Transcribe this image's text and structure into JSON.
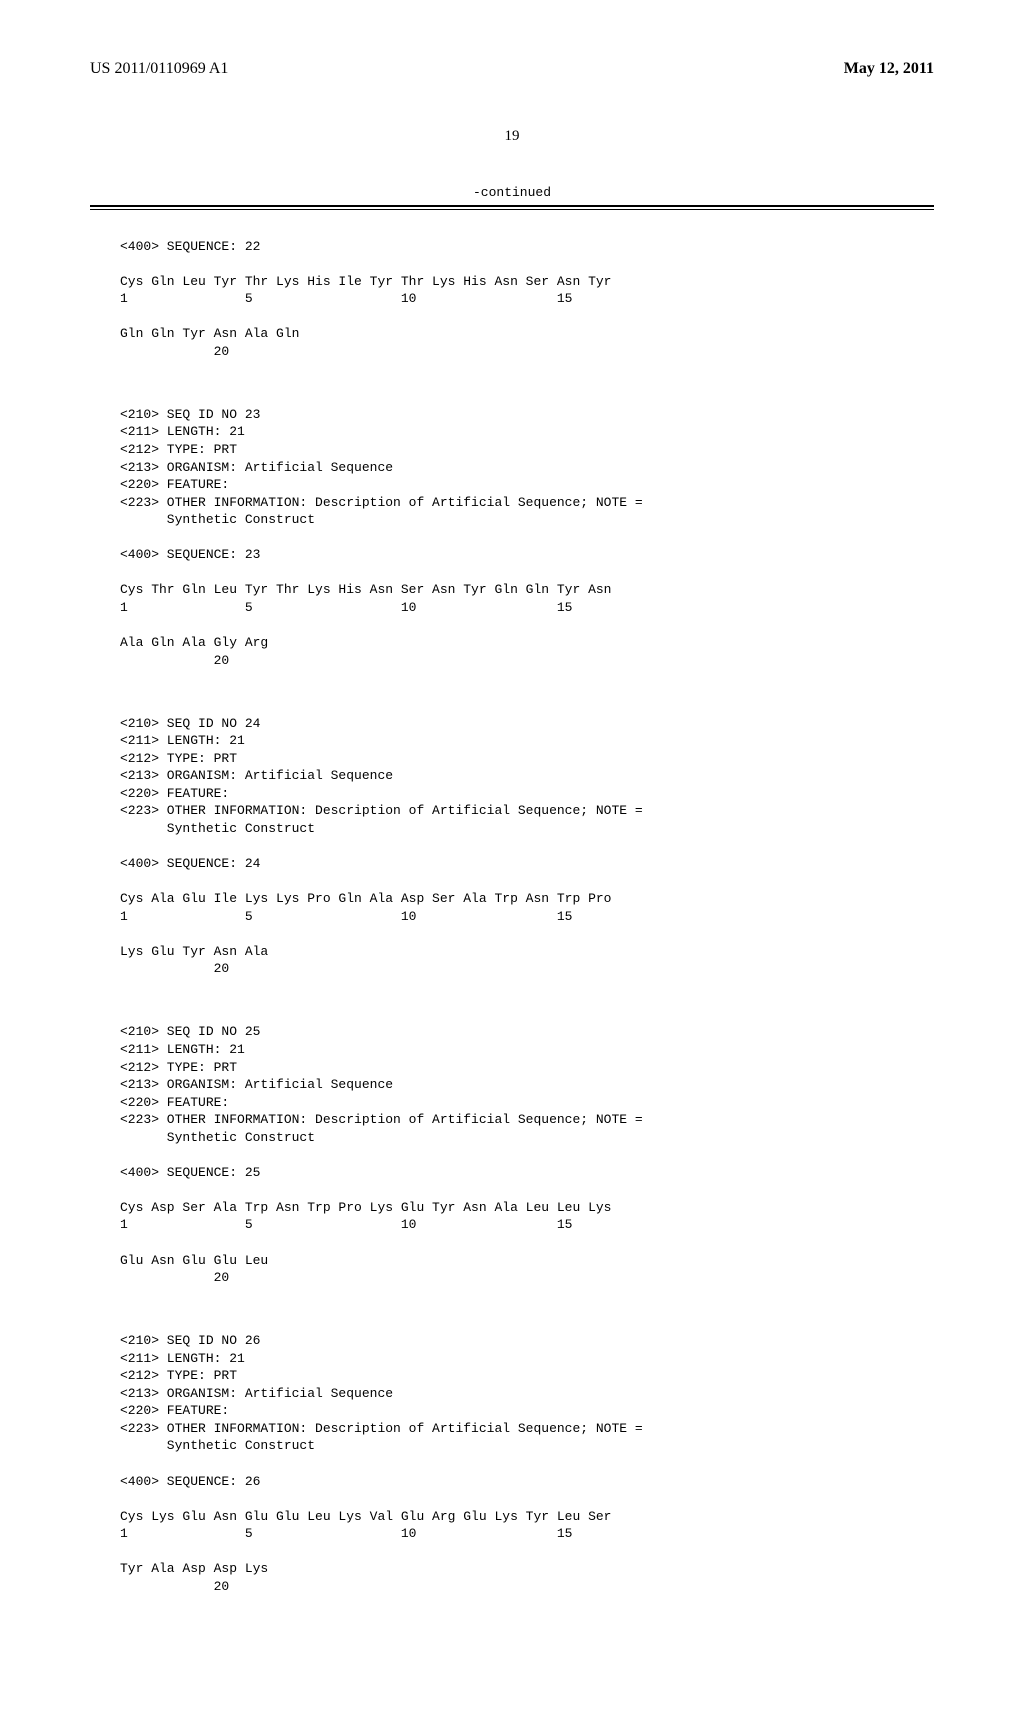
{
  "header": {
    "pub_number": "US 2011/0110969 A1",
    "date": "May 12, 2011"
  },
  "page_number": "19",
  "continued_label": "-continued",
  "sequences": [
    {
      "seq_label": "<400> SEQUENCE: 22",
      "line1": "Cys Gln Leu Tyr Thr Lys His Ile Tyr Thr Lys His Asn Ser Asn Tyr",
      "pos1": "1               5                   10                  15",
      "line2": "Gln Gln Tyr Asn Ala Gln",
      "pos2": "            20"
    },
    {
      "meta": [
        "<210> SEQ ID NO 23",
        "<211> LENGTH: 21",
        "<212> TYPE: PRT",
        "<213> ORGANISM: Artificial Sequence",
        "<220> FEATURE:",
        "<223> OTHER INFORMATION: Description of Artificial Sequence; NOTE =",
        "      Synthetic Construct"
      ],
      "seq_label": "<400> SEQUENCE: 23",
      "line1": "Cys Thr Gln Leu Tyr Thr Lys His Asn Ser Asn Tyr Gln Gln Tyr Asn",
      "pos1": "1               5                   10                  15",
      "line2": "Ala Gln Ala Gly Arg",
      "pos2": "            20"
    },
    {
      "meta": [
        "<210> SEQ ID NO 24",
        "<211> LENGTH: 21",
        "<212> TYPE: PRT",
        "<213> ORGANISM: Artificial Sequence",
        "<220> FEATURE:",
        "<223> OTHER INFORMATION: Description of Artificial Sequence; NOTE =",
        "      Synthetic Construct"
      ],
      "seq_label": "<400> SEQUENCE: 24",
      "line1": "Cys Ala Glu Ile Lys Lys Pro Gln Ala Asp Ser Ala Trp Asn Trp Pro",
      "pos1": "1               5                   10                  15",
      "line2": "Lys Glu Tyr Asn Ala",
      "pos2": "            20"
    },
    {
      "meta": [
        "<210> SEQ ID NO 25",
        "<211> LENGTH: 21",
        "<212> TYPE: PRT",
        "<213> ORGANISM: Artificial Sequence",
        "<220> FEATURE:",
        "<223> OTHER INFORMATION: Description of Artificial Sequence; NOTE =",
        "      Synthetic Construct"
      ],
      "seq_label": "<400> SEQUENCE: 25",
      "line1": "Cys Asp Ser Ala Trp Asn Trp Pro Lys Glu Tyr Asn Ala Leu Leu Lys",
      "pos1": "1               5                   10                  15",
      "line2": "Glu Asn Glu Glu Leu",
      "pos2": "            20"
    },
    {
      "meta": [
        "<210> SEQ ID NO 26",
        "<211> LENGTH: 21",
        "<212> TYPE: PRT",
        "<213> ORGANISM: Artificial Sequence",
        "<220> FEATURE:",
        "<223> OTHER INFORMATION: Description of Artificial Sequence; NOTE =",
        "      Synthetic Construct"
      ],
      "seq_label": "<400> SEQUENCE: 26",
      "line1": "Cys Lys Glu Asn Glu Glu Leu Lys Val Glu Arg Glu Lys Tyr Leu Ser",
      "pos1": "1               5                   10                  15",
      "line2": "Tyr Ala Asp Asp Lys",
      "pos2": "            20"
    }
  ]
}
